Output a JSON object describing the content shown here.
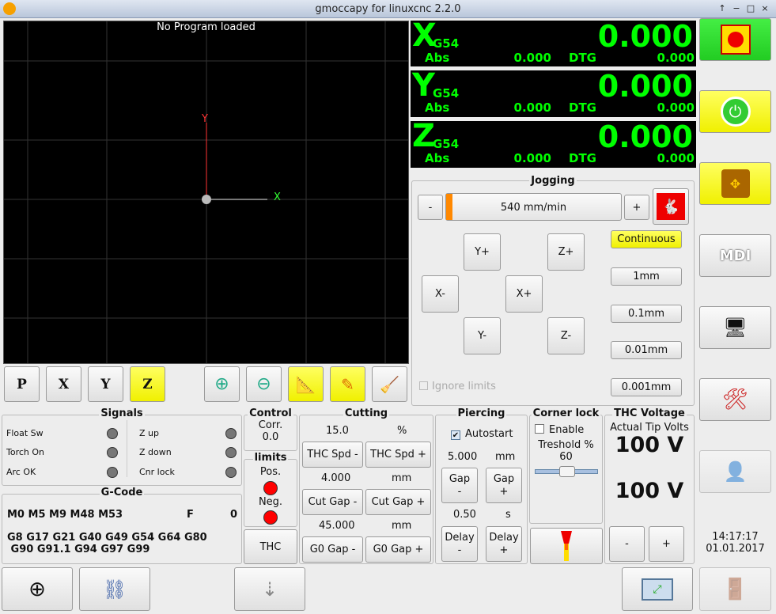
{
  "window": {
    "title": "gmoccapy for linuxcnc  2.2.0",
    "controls": [
      "↑",
      "−",
      "□",
      "×"
    ]
  },
  "preview": {
    "status": "No Program loaded",
    "axis_x": "X",
    "axis_y": "Y"
  },
  "view_toolbar": {
    "p": "P",
    "x": "X",
    "y": "Y",
    "z": "Z",
    "active": "Z"
  },
  "dro": [
    {
      "axis": "X",
      "system": "G54",
      "value": "0.000",
      "abs_label": "Abs",
      "abs": "0.000",
      "dtg_label": "DTG",
      "dtg": "0.000"
    },
    {
      "axis": "Y",
      "system": "G54",
      "value": "0.000",
      "abs_label": "Abs",
      "abs": "0.000",
      "dtg_label": "DTG",
      "dtg": "0.000"
    },
    {
      "axis": "Z",
      "system": "G54",
      "value": "0.000",
      "abs_label": "Abs",
      "abs": "0.000",
      "dtg_label": "DTG",
      "dtg": "0.000"
    }
  ],
  "jogging": {
    "title": "Jogging",
    "minus": "-",
    "plus": "+",
    "speed": "540 mm/min",
    "speed_fraction": 0.02,
    "buttons": {
      "y_plus": "Y+",
      "z_plus": "Z+",
      "x_minus": "X-",
      "x_plus": "X+",
      "y_minus": "Y-",
      "z_minus": "Z-"
    },
    "increments": [
      "Continuous",
      "1mm",
      "0.1mm",
      "0.01mm",
      "0.001mm"
    ],
    "selected_increment": "Continuous",
    "ignore_limits": "Ignore limits"
  },
  "side_buttons": {
    "mdi": "MDI"
  },
  "signals": {
    "title": "Signals",
    "left": [
      "Float Sw",
      "Torch On",
      "Arc OK"
    ],
    "right": [
      "Z up",
      "Z down",
      "Cnr lock"
    ]
  },
  "gcode": {
    "title": "G-Code",
    "mcodes": "M0 M5 M9 M48 M53",
    "f_label": "F",
    "f_value": "0",
    "gcodes_1": "G8 G17 G21 G40 G49 G54 G64 G80",
    "gcodes_2": " G90 G91.1 G94 G97 G99"
  },
  "control": {
    "title": "Control",
    "corr_label": "Corr.",
    "corr_value": "0.0"
  },
  "limits": {
    "title": "limits",
    "pos": "Pos.",
    "neg": "Neg.",
    "thc_button": "THC"
  },
  "cutting": {
    "title": "Cutting",
    "spd_value": "15.0",
    "spd_unit": "%",
    "spd_minus": "THC Spd -",
    "spd_plus": "THC Spd +",
    "gap_value": "4.000",
    "gap_unit": "mm",
    "gap_minus": "Cut Gap -",
    "gap_plus": "Cut Gap +",
    "g0_value": "45.000",
    "g0_unit": "mm",
    "g0_minus": "G0 Gap -",
    "g0_plus": "G0 Gap +"
  },
  "piercing": {
    "title": "Piercing",
    "autostart": "Autostart",
    "autostart_checked": true,
    "gap_value": "5.000",
    "gap_unit": "mm",
    "gap_minus": "Gap\n-",
    "gap_plus": "Gap\n+",
    "delay_value": "0.50",
    "delay_unit": "s",
    "delay_minus": "Delay\n-",
    "delay_plus": "Delay\n+"
  },
  "corner_lock": {
    "title": "Corner lock",
    "enable": "Enable",
    "enabled": false,
    "threshold_label": "Treshold %",
    "threshold": "60"
  },
  "thc_voltage": {
    "title": "THC Voltage",
    "actual_label": "Actual Tip Volts",
    "actual": "100 V",
    "target": "100 V",
    "minus": "-",
    "plus": "+"
  },
  "clock": {
    "time": "14:17:17",
    "date": "01.01.2017"
  },
  "colors": {
    "dro_text": "#00ff00",
    "active": "#ffff00",
    "estop": "#33dd33",
    "limit_led": "#ff0000"
  }
}
